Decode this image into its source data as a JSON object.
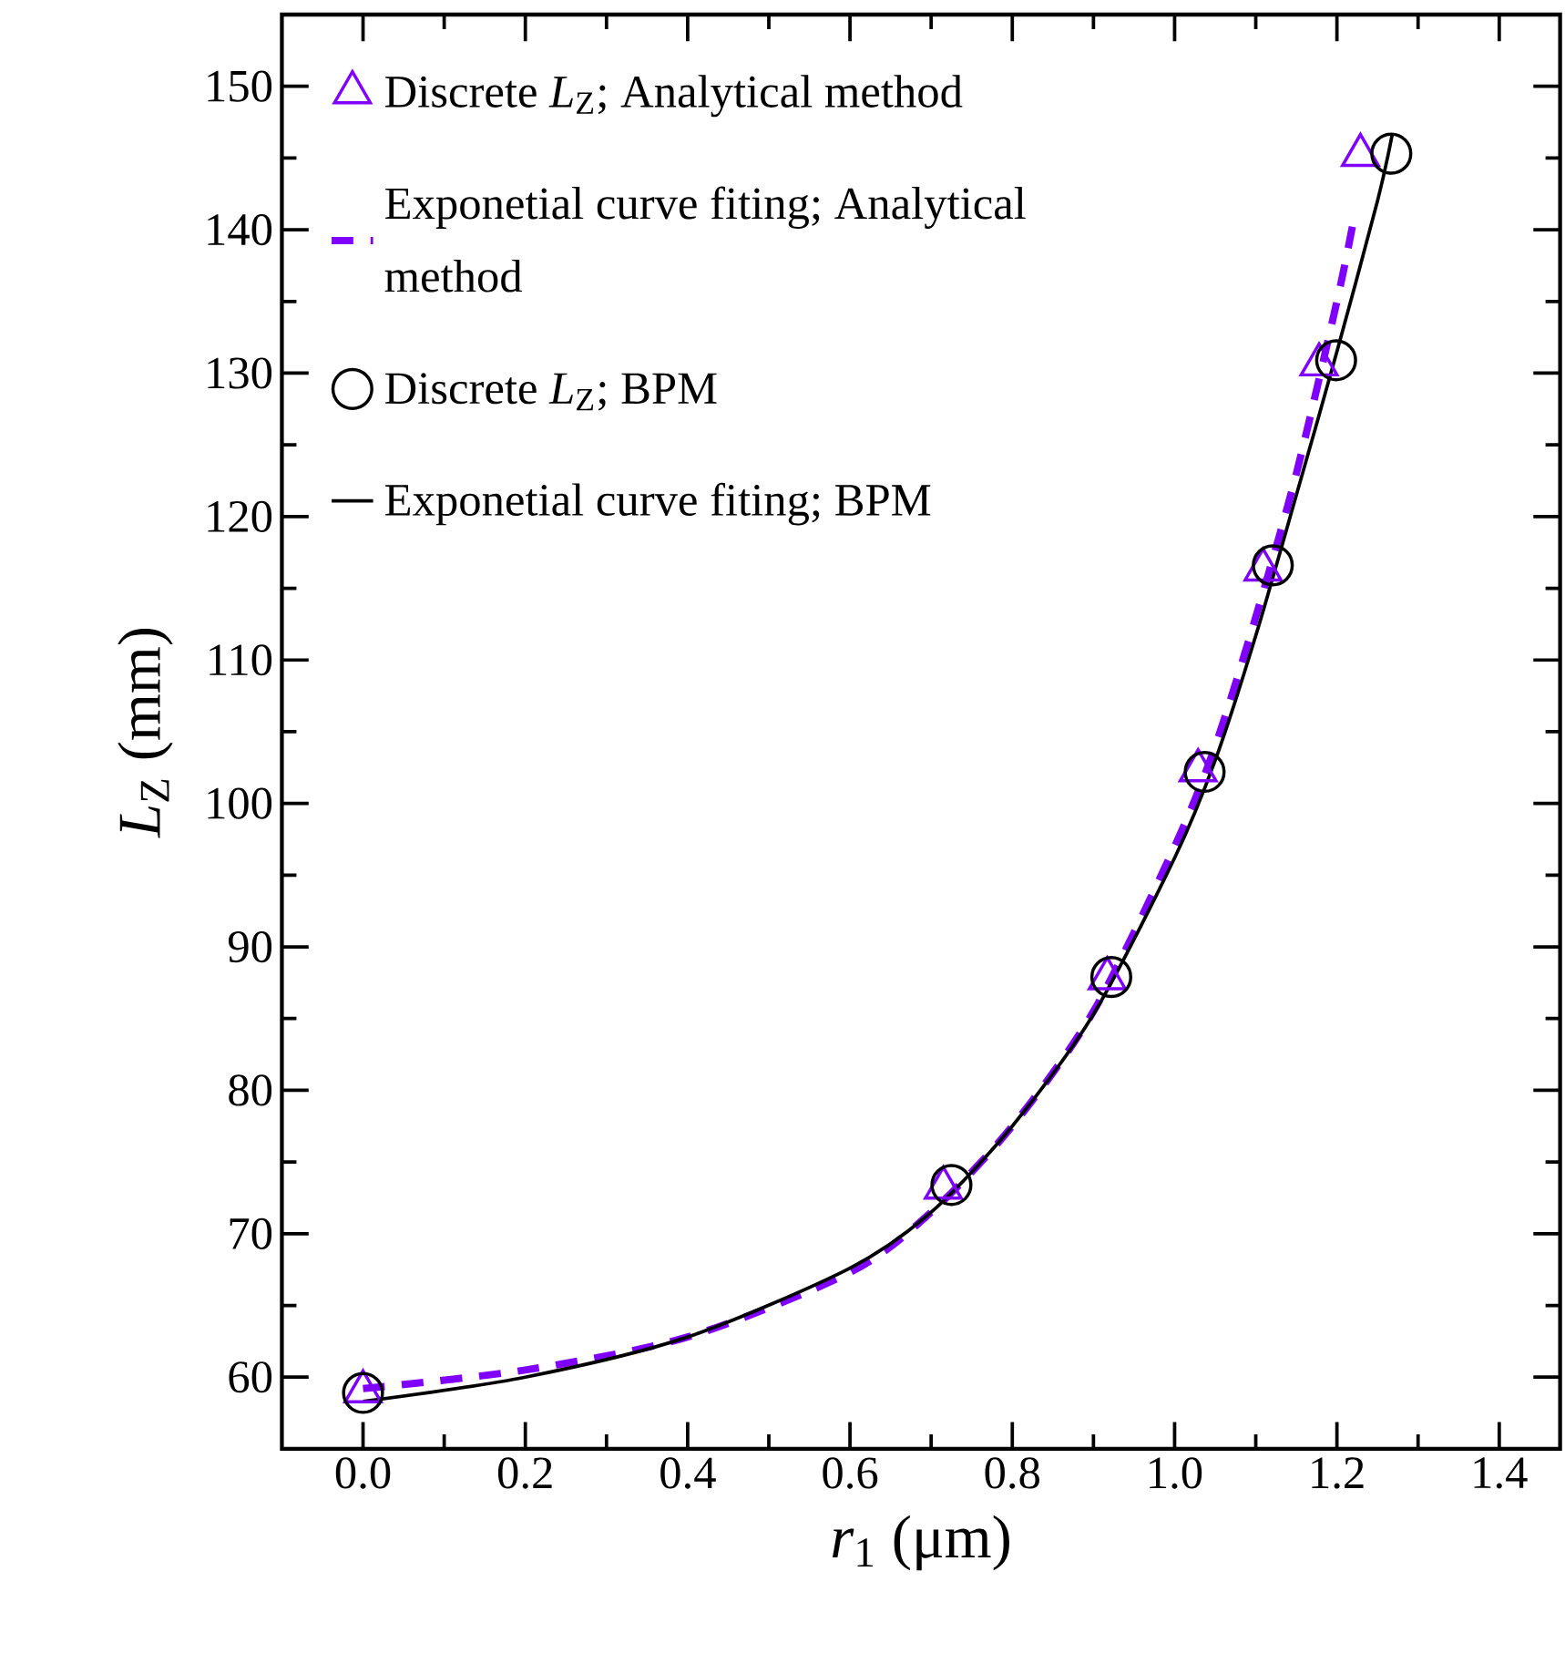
{
  "chart_data": {
    "type": "line",
    "xlabel": "*r*$_{1}$ (μm)",
    "ylabel": "*L*$_{Z}$ (mm)",
    "xlim": [
      -0.1,
      1.475
    ],
    "ylim": [
      55,
      155
    ],
    "xticks": [
      {
        "value": 0,
        "label": "0.0"
      },
      0.2,
      0.4,
      0.6,
      0.8,
      {
        "value": 1,
        "label": "1.0"
      },
      1.2,
      1.4
    ],
    "yticks": [
      60,
      70,
      80,
      90,
      100,
      110,
      120,
      130,
      140,
      150
    ],
    "grid": false,
    "legend": "top left",
    "series": [
      {
        "name": "Discrete *L*$_{Z}$; Analytical method",
        "type": "scatter",
        "marker": "triangle",
        "color": "#8000ff",
        "x": [
          0,
          0.715,
          0.917,
          1.029,
          1.109,
          1.178,
          1.229
        ],
        "values": [
          59.0,
          73.2,
          87.8,
          102.3,
          116.3,
          130.6,
          145.2
        ]
      },
      {
        "name": "Exponetial curve fiting; Analytical method",
        "line_style": "dashed",
        "marker": "none",
        "color": "#8000ff",
        "x": [
          0,
          0.2,
          0.4,
          0.6,
          0.7,
          0.8,
          0.9,
          1.0,
          1.05,
          1.1,
          1.15,
          1.2,
          1.22
        ],
        "values": [
          59.2,
          60.5,
          62.8,
          67.3,
          71.5,
          77.5,
          85.5,
          97,
          104,
          113,
          123,
          135,
          140.5
        ]
      },
      {
        "name": "Discrete *L*$_{Z}$; BPM",
        "type": "scatter",
        "marker": "circle",
        "color": "#000000",
        "x": [
          0,
          0.725,
          0.922,
          1.037,
          1.121,
          1.199,
          1.267
        ],
        "values": [
          58.9,
          73.4,
          87.9,
          102.2,
          116.6,
          130.9,
          145.3
        ]
      },
      {
        "name": "Exponetial curve fiting; BPM",
        "line_style": "solid",
        "marker": "none",
        "color": "#000000",
        "x": [
          0,
          0.2,
          0.4,
          0.6,
          0.7,
          0.8,
          0.9,
          1.0,
          1.05,
          1.1,
          1.15,
          1.2,
          1.25,
          1.268
        ],
        "values": [
          58.3,
          60.0,
          62.8,
          67.6,
          71.5,
          77.5,
          85.3,
          96.2,
          103,
          111.7,
          121.5,
          131.5,
          142,
          146.6
        ]
      }
    ]
  }
}
